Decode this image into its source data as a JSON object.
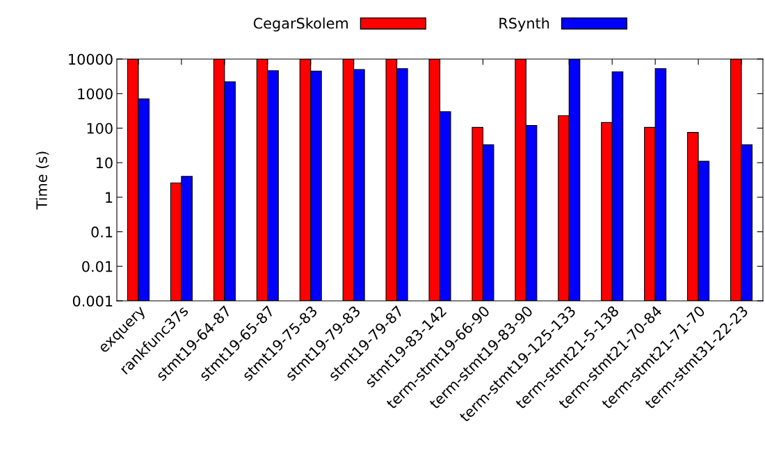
{
  "chart_data": {
    "type": "bar",
    "ylabel": "Time (s)",
    "categories": [
      "exquery",
      "rankfunc37s",
      "stmt19-64-87",
      "stmt19-65-87",
      "stmt19-75-83",
      "stmt19-79-83",
      "stmt19-79-87",
      "stmt19-83-142",
      "term-stmt19-66-90",
      "term-stmt19-83-90",
      "term-stmt19-125-133",
      "term-stmt21-5-138",
      "term-stmt21-70-84",
      "term-stmt21-71-70",
      "term-stmt31-22-23"
    ],
    "series": [
      {
        "name": "CegarSkolem",
        "color": "#ff0000",
        "values": [
          10000,
          2.6,
          10000,
          10000,
          10000,
          10000,
          10000,
          10000,
          105,
          10000,
          230,
          145,
          105,
          75,
          10000
        ]
      },
      {
        "name": "RSynth",
        "color": "#0000ff",
        "values": [
          700,
          4,
          2200,
          4600,
          4500,
          5000,
          5300,
          300,
          33,
          120,
          10000,
          4300,
          5300,
          11,
          33
        ]
      }
    ],
    "log": "y",
    "ylim": [
      0.001,
      10000
    ],
    "yticks": [
      0.001,
      0.01,
      0.1,
      1,
      10,
      100,
      1000,
      10000
    ],
    "legend": "top",
    "grid": false
  }
}
